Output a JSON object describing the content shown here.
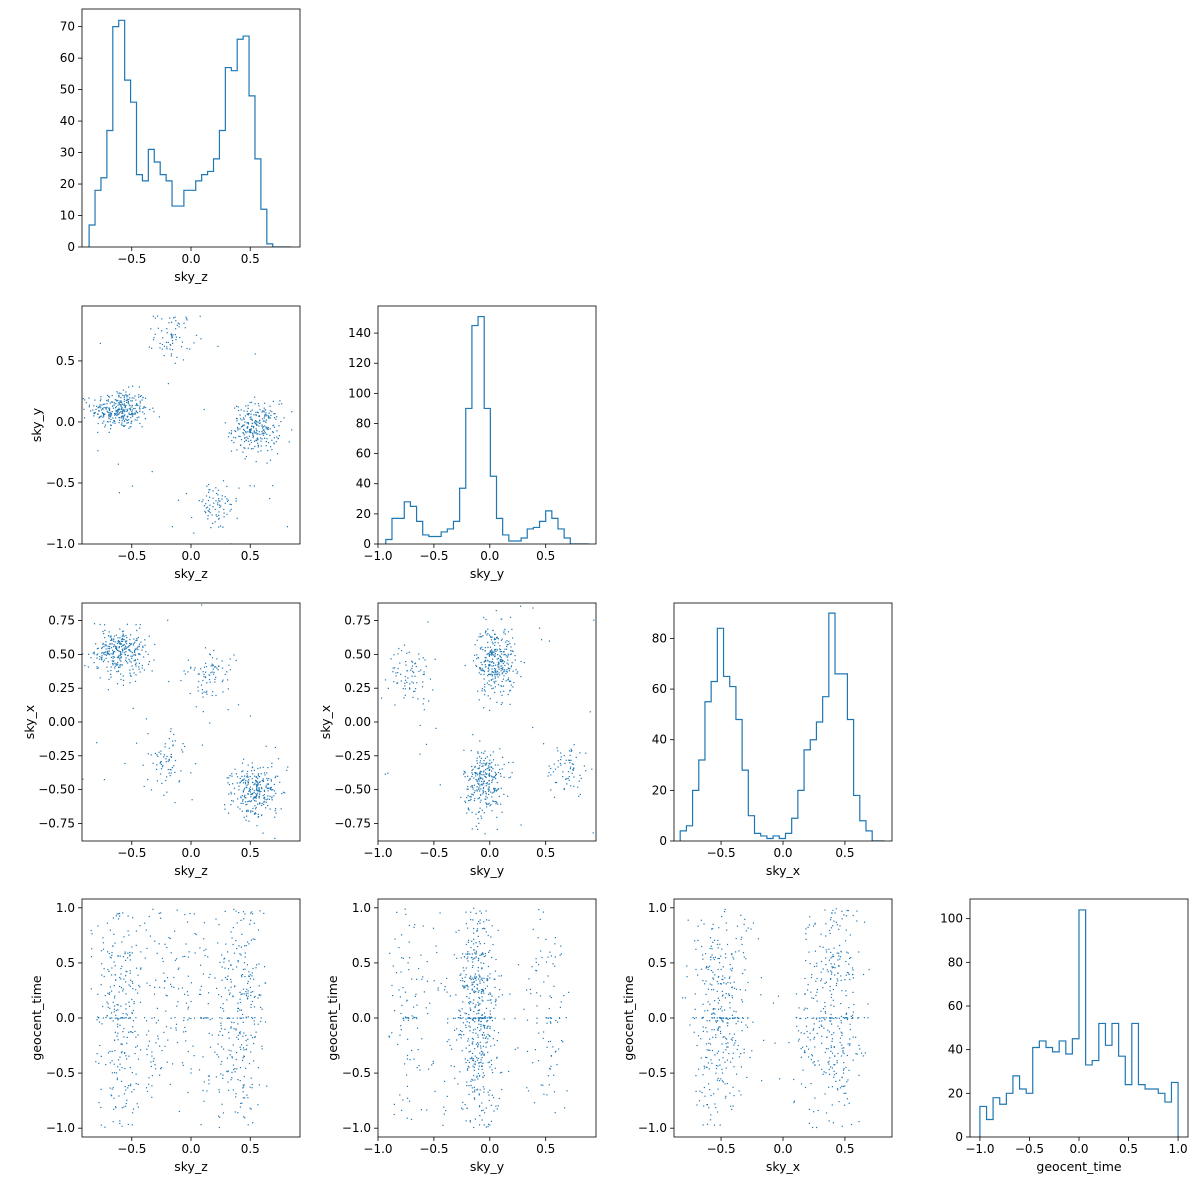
{
  "chart_data": [
    {
      "type": "histogram",
      "variable": "sky_z",
      "xlabel": "sky_z",
      "ylabel": "",
      "xlim": [
        -0.92,
        0.92
      ],
      "ylim": [
        0,
        75.6
      ],
      "xticks": [
        -0.5,
        0.0,
        0.5
      ],
      "xtick_labels": [
        "−0.5",
        "0.0",
        "0.5"
      ],
      "yticks": [
        0,
        10,
        20,
        30,
        40,
        50,
        60,
        70
      ],
      "ytick_labels": [
        "0",
        "10",
        "20",
        "30",
        "40",
        "50",
        "60",
        "70"
      ],
      "bin_edges": [
        -0.86,
        -0.81,
        -0.76,
        -0.71,
        -0.66,
        -0.61,
        -0.56,
        -0.51,
        -0.46,
        -0.41,
        -0.36,
        -0.31,
        -0.26,
        -0.21,
        -0.16,
        -0.11,
        -0.06,
        -0.01,
        0.04,
        0.09,
        0.14,
        0.19,
        0.24,
        0.29,
        0.34,
        0.39,
        0.44,
        0.49,
        0.54,
        0.59,
        0.64,
        0.69,
        0.74,
        0.79,
        0.84
      ],
      "counts": [
        7,
        18,
        22,
        37,
        70,
        72,
        53,
        46,
        23,
        21,
        31,
        27,
        23,
        21,
        13,
        13,
        18,
        18,
        21,
        23,
        24,
        28,
        37,
        57,
        56,
        66,
        67,
        48,
        28,
        12,
        1,
        0,
        0,
        0
      ],
      "color": "#1f77b4"
    },
    {
      "type": "scatter",
      "x_variable": "sky_z",
      "y_variable": "sky_y",
      "xlabel": "sky_z",
      "ylabel": "sky_y",
      "xlim": [
        -0.92,
        0.92
      ],
      "ylim": [
        -1.0,
        0.95
      ],
      "xticks": [
        -0.5,
        0.0,
        0.5
      ],
      "xtick_labels": [
        "−0.5",
        "0.0",
        "0.5"
      ],
      "yticks": [
        -1.0,
        -0.5,
        0.0,
        0.5
      ],
      "ytick_labels": [
        "−1.0",
        "−0.5",
        "0.0",
        "0.5"
      ],
      "clusters": [
        {
          "center": [
            -0.6,
            0.1
          ],
          "spread": [
            0.12,
            0.08
          ],
          "n": 320
        },
        {
          "center": [
            0.55,
            -0.05
          ],
          "spread": [
            0.1,
            0.1
          ],
          "n": 280
        },
        {
          "center": [
            -0.15,
            0.7
          ],
          "spread": [
            0.08,
            0.1
          ],
          "n": 70
        },
        {
          "center": [
            0.2,
            -0.7
          ],
          "spread": [
            0.1,
            0.1
          ],
          "n": 80
        }
      ],
      "color": "#1f77b4"
    },
    {
      "type": "histogram",
      "variable": "sky_y",
      "xlabel": "sky_y",
      "ylabel": "",
      "xlim": [
        -1.0,
        0.95
      ],
      "ylim": [
        0,
        158
      ],
      "xticks": [
        -1.0,
        -0.5,
        0.0,
        0.5
      ],
      "xtick_labels": [
        "−1.0",
        "−0.5",
        "0.0",
        "0.5"
      ],
      "yticks": [
        0,
        20,
        40,
        60,
        80,
        100,
        120,
        140
      ],
      "ytick_labels": [
        "0",
        "20",
        "40",
        "60",
        "80",
        "100",
        "120",
        "140"
      ],
      "bin_edges": [
        -0.93,
        -0.875,
        -0.82,
        -0.765,
        -0.71,
        -0.655,
        -0.6,
        -0.545,
        -0.49,
        -0.435,
        -0.38,
        -0.325,
        -0.27,
        -0.215,
        -0.16,
        -0.105,
        -0.05,
        0.005,
        0.06,
        0.115,
        0.17,
        0.225,
        0.28,
        0.335,
        0.39,
        0.445,
        0.5,
        0.555,
        0.61,
        0.665,
        0.72,
        0.775,
        0.83,
        0.885
      ],
      "counts": [
        3,
        17,
        17,
        28,
        25,
        15,
        6,
        5,
        5,
        8,
        10,
        15,
        37,
        90,
        145,
        151,
        90,
        45,
        17,
        6,
        2,
        2,
        4,
        10,
        11,
        15,
        22,
        17,
        10,
        4,
        0,
        0,
        0
      ],
      "color": "#1f77b4"
    },
    {
      "type": "scatter",
      "x_variable": "sky_z",
      "y_variable": "sky_x",
      "xlabel": "sky_z",
      "ylabel": "sky_x",
      "xlim": [
        -0.92,
        0.92
      ],
      "ylim": [
        -0.88,
        0.88
      ],
      "xticks": [
        -0.5,
        0.0,
        0.5
      ],
      "xtick_labels": [
        "−0.5",
        "0.0",
        "0.5"
      ],
      "yticks": [
        -0.75,
        -0.5,
        -0.25,
        0.0,
        0.25,
        0.5,
        0.75
      ],
      "ytick_labels": [
        "−0.75",
        "−0.50",
        "−0.25",
        "0.00",
        "0.25",
        "0.50",
        "0.75"
      ],
      "clusters": [
        {
          "center": [
            -0.6,
            0.52
          ],
          "spread": [
            0.12,
            0.09
          ],
          "n": 320
        },
        {
          "center": [
            0.55,
            -0.5
          ],
          "spread": [
            0.1,
            0.1
          ],
          "n": 280
        },
        {
          "center": [
            0.15,
            0.35
          ],
          "spread": [
            0.1,
            0.1
          ],
          "n": 80
        },
        {
          "center": [
            -0.2,
            -0.3
          ],
          "spread": [
            0.09,
            0.1
          ],
          "n": 70
        }
      ],
      "color": "#1f77b4"
    },
    {
      "type": "scatter",
      "x_variable": "sky_y",
      "y_variable": "sky_x",
      "xlabel": "sky_y",
      "ylabel": "sky_x",
      "xlim": [
        -1.0,
        0.95
      ],
      "ylim": [
        -0.88,
        0.88
      ],
      "xticks": [
        -1.0,
        -0.5,
        0.0,
        0.5
      ],
      "xtick_labels": [
        "−1.0",
        "−0.5",
        "0.0",
        "0.5"
      ],
      "yticks": [
        -0.75,
        -0.5,
        -0.25,
        0.0,
        0.25,
        0.5,
        0.75
      ],
      "ytick_labels": [
        "−0.75",
        "−0.50",
        "−0.25",
        "0.00",
        "0.25",
        "0.50",
        "0.75"
      ],
      "clusters": [
        {
          "center": [
            0.05,
            0.45
          ],
          "spread": [
            0.09,
            0.13
          ],
          "n": 320
        },
        {
          "center": [
            -0.05,
            -0.45
          ],
          "spread": [
            0.09,
            0.13
          ],
          "n": 280
        },
        {
          "center": [
            -0.7,
            0.35
          ],
          "spread": [
            0.1,
            0.1
          ],
          "n": 80
        },
        {
          "center": [
            0.7,
            -0.35
          ],
          "spread": [
            0.1,
            0.1
          ],
          "n": 70
        }
      ],
      "color": "#1f77b4"
    },
    {
      "type": "histogram",
      "variable": "sky_x",
      "xlabel": "sky_x",
      "ylabel": "",
      "xlim": [
        -0.88,
        0.88
      ],
      "ylim": [
        0,
        94
      ],
      "xticks": [
        -0.5,
        0.0,
        0.5
      ],
      "xtick_labels": [
        "−0.5",
        "0.0",
        "0.5"
      ],
      "yticks": [
        0,
        20,
        40,
        60,
        80
      ],
      "ytick_labels": [
        "0",
        "20",
        "40",
        "60",
        "80"
      ],
      "bin_edges": [
        -0.83,
        -0.78,
        -0.73,
        -0.68,
        -0.63,
        -0.58,
        -0.53,
        -0.48,
        -0.43,
        -0.38,
        -0.33,
        -0.28,
        -0.23,
        -0.18,
        -0.13,
        -0.08,
        -0.03,
        0.02,
        0.07,
        0.12,
        0.17,
        0.22,
        0.27,
        0.32,
        0.37,
        0.42,
        0.47,
        0.52,
        0.57,
        0.62,
        0.67,
        0.72,
        0.77,
        0.82
      ],
      "counts": [
        4,
        6,
        20,
        32,
        55,
        63,
        84,
        65,
        61,
        48,
        28,
        10,
        3,
        2,
        1,
        2,
        1,
        3,
        9,
        20,
        36,
        40,
        47,
        57,
        90,
        66,
        66,
        48,
        18,
        8,
        4,
        0,
        0
      ],
      "color": "#1f77b4"
    },
    {
      "type": "scatter",
      "x_variable": "sky_z",
      "y_variable": "geocent_time",
      "xlabel": "sky_z",
      "ylabel": "geocent_time",
      "xlim": [
        -0.92,
        0.92
      ],
      "ylim": [
        -1.08,
        1.08
      ],
      "xticks": [
        -0.5,
        0.0,
        0.5
      ],
      "xtick_labels": [
        "−0.5",
        "0.0",
        "0.5"
      ],
      "yticks": [
        -1.0,
        -0.5,
        0.0,
        0.5,
        1.0
      ],
      "ytick_labels": [
        "−1.0",
        "−0.5",
        "0.0",
        "0.5",
        "1.0"
      ],
      "color": "#1f77b4"
    },
    {
      "type": "scatter",
      "x_variable": "sky_y",
      "y_variable": "geocent_time",
      "xlabel": "sky_y",
      "ylabel": "geocent_time",
      "xlim": [
        -1.0,
        0.95
      ],
      "ylim": [
        -1.08,
        1.08
      ],
      "xticks": [
        -1.0,
        -0.5,
        0.0,
        0.5
      ],
      "xtick_labels": [
        "−1.0",
        "−0.5",
        "0.0",
        "0.5"
      ],
      "yticks": [
        -1.0,
        -0.5,
        0.0,
        0.5,
        1.0
      ],
      "ytick_labels": [
        "−1.0",
        "−0.5",
        "0.0",
        "0.5",
        "1.0"
      ],
      "color": "#1f77b4"
    },
    {
      "type": "scatter",
      "x_variable": "sky_x",
      "y_variable": "geocent_time",
      "xlabel": "sky_x",
      "ylabel": "geocent_time",
      "xlim": [
        -0.88,
        0.88
      ],
      "ylim": [
        -1.08,
        1.08
      ],
      "xticks": [
        -0.5,
        0.0,
        0.5
      ],
      "xtick_labels": [
        "−0.5",
        "0.0",
        "0.5"
      ],
      "yticks": [
        -1.0,
        -0.5,
        0.0,
        0.5,
        1.0
      ],
      "ytick_labels": [
        "−1.0",
        "−0.5",
        "0.0",
        "0.5",
        "1.0"
      ],
      "color": "#1f77b4"
    },
    {
      "type": "histogram",
      "variable": "geocent_time",
      "xlabel": "geocent_time",
      "ylabel": "",
      "xlim": [
        -1.1,
        1.1
      ],
      "ylim": [
        0,
        109
      ],
      "xticks": [
        -1.0,
        -0.5,
        0.0,
        0.5,
        1.0
      ],
      "xtick_labels": [
        "−1.0",
        "−0.5",
        "0.0",
        "0.5",
        "1.0"
      ],
      "yticks": [
        0,
        20,
        40,
        60,
        80,
        100
      ],
      "ytick_labels": [
        "0",
        "20",
        "40",
        "60",
        "80",
        "100"
      ],
      "bin_edges": [
        -1.0,
        -0.933,
        -0.867,
        -0.8,
        -0.733,
        -0.667,
        -0.6,
        -0.533,
        -0.467,
        -0.4,
        -0.333,
        -0.267,
        -0.2,
        -0.133,
        -0.067,
        0.0,
        0.067,
        0.133,
        0.2,
        0.267,
        0.333,
        0.4,
        0.467,
        0.533,
        0.6,
        0.667,
        0.733,
        0.8,
        0.867,
        0.933,
        1.0
      ],
      "counts": [
        14,
        8,
        18,
        15,
        20,
        28,
        22,
        20,
        41,
        44,
        41,
        39,
        44,
        38,
        45,
        104,
        33,
        35,
        52,
        42,
        52,
        37,
        24,
        52,
        24,
        22,
        22,
        20,
        16,
        25
      ],
      "color": "#1f77b4"
    }
  ]
}
